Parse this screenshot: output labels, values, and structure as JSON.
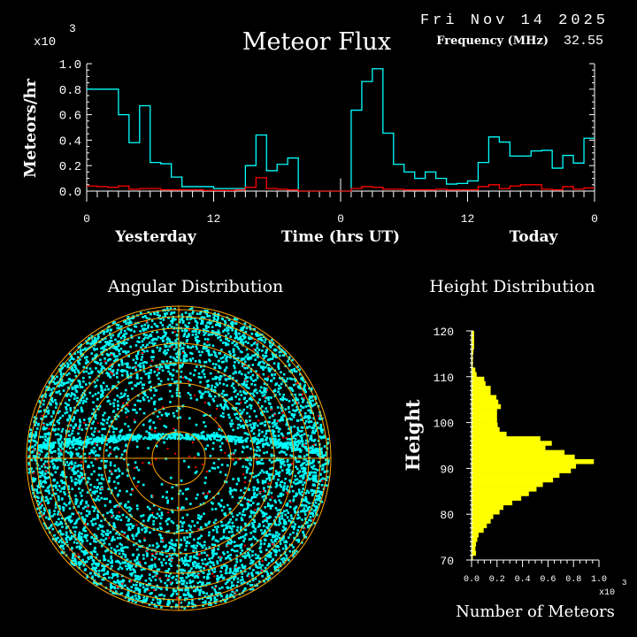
{
  "header": {
    "date": "Fri Nov 14 2025",
    "frequency_label": "Frequency (MHz)",
    "frequency_value": "32.55"
  },
  "chart_data": [
    {
      "type": "line",
      "title": "Meteor Flux",
      "ylabel": "Meteors/hr",
      "xlabel": "Time (hrs UT)",
      "day_labels": [
        "Yesterday",
        "Today"
      ],
      "y_multiplier": "x10",
      "y_multiplier_exp": "3",
      "ylim": [
        0,
        1.0
      ],
      "yticks": [
        "0.0",
        "0.2",
        "0.4",
        "0.6",
        "0.8",
        "1.0"
      ],
      "xticks": [
        "0",
        "12",
        "0",
        "12",
        "0"
      ],
      "x_hours": [
        0,
        1,
        2,
        3,
        4,
        5,
        6,
        7,
        8,
        9,
        10,
        11,
        12,
        13,
        14,
        15,
        16,
        17,
        18,
        19,
        20,
        21,
        22,
        23,
        24,
        25,
        26,
        27,
        28,
        29,
        30,
        31,
        32,
        33,
        34,
        35,
        36,
        37,
        38,
        39,
        40,
        41,
        42,
        43,
        44,
        45,
        46,
        47
      ],
      "series": [
        {
          "color": "#00ffff",
          "values": [
            0.8,
            0.8,
            0.8,
            0.6,
            0.38,
            0.67,
            0.225,
            0.215,
            0.11,
            0.035,
            0.035,
            0.035,
            0.02,
            0.02,
            0.02,
            0.2,
            0.44,
            0.16,
            0.21,
            0.26,
            0,
            0,
            0,
            0,
            0,
            0.635,
            0.86,
            0.96,
            0.455,
            0.21,
            0.15,
            0.1,
            0.15,
            0.1,
            0.055,
            0.06,
            0.08,
            0.225,
            0.425,
            0.385,
            0.275,
            0.275,
            0.315,
            0.32,
            0.18,
            0.28,
            0.22,
            0.415
          ]
        },
        {
          "color": "#ff0000",
          "values": [
            0.04,
            0.035,
            0.03,
            0.04,
            0.015,
            0.02,
            0.02,
            0.01,
            0.01,
            0.01,
            0.01,
            0.005,
            0.005,
            0.005,
            0.01,
            0.03,
            0.105,
            0.02,
            0.015,
            0.01,
            0,
            0,
            0,
            0,
            0,
            0.02,
            0.035,
            0.03,
            0.015,
            0.015,
            0.01,
            0.01,
            0.01,
            0.015,
            0.01,
            0.01,
            0.01,
            0.035,
            0.05,
            0.02,
            0.04,
            0.05,
            0.05,
            0.015,
            0.01,
            0.035,
            0.015,
            0.025
          ]
        }
      ],
      "now_marker_hour": 24
    },
    {
      "type": "scatter",
      "title": "Angular Distribution",
      "colors": {
        "points": "#00ffff",
        "highlight": "#ff0000",
        "grid": "#ffa500"
      }
    },
    {
      "type": "bar",
      "orientation": "horizontal",
      "title": "Height Distribution",
      "ylabel": "Height",
      "xlabel": "Number of Meteors",
      "x_multiplier": "x10",
      "x_multiplier_exp": "3",
      "xlim": [
        0,
        1.0
      ],
      "ylim": [
        70,
        120
      ],
      "xticks": [
        "0.0",
        "0.2",
        "0.4",
        "0.6",
        "0.8",
        "1.0"
      ],
      "yticks": [
        "70",
        "80",
        "90",
        "100",
        "110",
        "120"
      ],
      "color": "#ffff00",
      "bin_start_km": [
        70,
        71,
        72,
        73,
        74,
        75,
        76,
        77,
        78,
        79,
        80,
        81,
        82,
        83,
        84,
        85,
        86,
        87,
        88,
        89,
        90,
        91,
        92,
        93,
        94,
        95,
        96,
        97,
        98,
        99,
        100,
        101,
        102,
        103,
        104,
        105,
        106,
        107,
        108,
        109,
        110,
        111,
        112,
        113,
        114,
        115,
        116,
        117,
        118,
        119
      ],
      "values": [
        0.01,
        0.035,
        0.03,
        0.035,
        0.045,
        0.055,
        0.095,
        0.12,
        0.15,
        0.17,
        0.22,
        0.25,
        0.32,
        0.39,
        0.45,
        0.51,
        0.56,
        0.64,
        0.69,
        0.78,
        0.82,
        0.96,
        0.81,
        0.73,
        0.58,
        0.63,
        0.54,
        0.275,
        0.22,
        0.205,
        0.2,
        0.2,
        0.2,
        0.23,
        0.21,
        0.195,
        0.15,
        0.15,
        0.11,
        0.1,
        0.04,
        0.03,
        0.01,
        0.01,
        0.01,
        0.015,
        0.02,
        0.02,
        0.02,
        0.02
      ]
    }
  ]
}
